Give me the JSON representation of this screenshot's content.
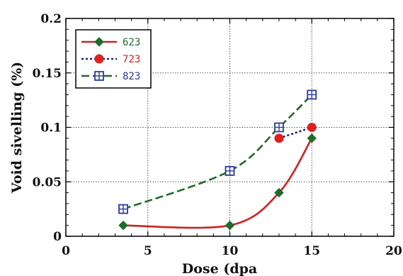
{
  "chart_data": {
    "type": "line",
    "title": "",
    "xlabel": "Dose (dpa",
    "ylabel": "Void sivelling (%)",
    "xlim": [
      0,
      20
    ],
    "ylim": [
      0,
      0.2
    ],
    "x_ticks": [
      "0",
      "5",
      "10",
      "15",
      "20"
    ],
    "y_ticks": [
      "0",
      "0.05",
      "0.1",
      "0.15",
      "0.2"
    ],
    "grid": true,
    "legend_position": "top-left",
    "series": [
      {
        "name": "623",
        "color": "#cc2222",
        "marker_color": "#1e6b2a",
        "line_style": "solid",
        "marker": "diamond",
        "x": [
          3.5,
          10,
          13,
          15
        ],
        "y": [
          0.01,
          0.01,
          0.04,
          0.09
        ]
      },
      {
        "name": "723",
        "color": "#1a237e",
        "marker_color": "#e02020",
        "line_style": "dotted",
        "marker": "circle",
        "x": [
          13,
          15
        ],
        "y": [
          0.09,
          0.1
        ]
      },
      {
        "name": "823",
        "color": "#1e6b2a",
        "marker_color": "#2b3a9a",
        "line_style": "dashed",
        "marker": "square-cross",
        "x": [
          3.5,
          10,
          13,
          15
        ],
        "y": [
          0.025,
          0.06,
          0.1,
          0.13
        ]
      }
    ]
  }
}
